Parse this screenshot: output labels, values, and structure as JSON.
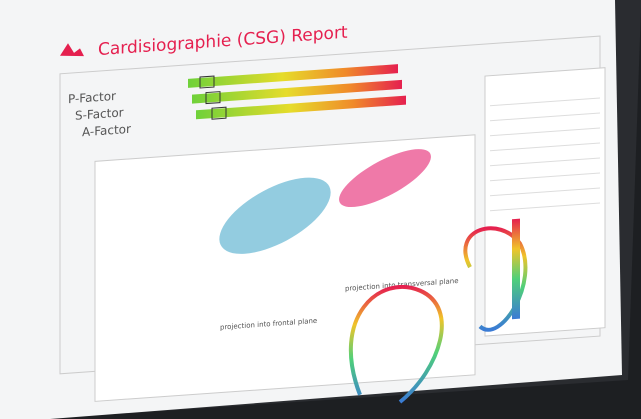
{
  "header": {
    "title": "Cardisiographie (CSG) Report"
  },
  "factors": [
    "P-Factor",
    "S-Factor",
    "A-Factor"
  ],
  "plots": {
    "frontal": "projection into frontal plane",
    "transversal": "projection into transversal plane"
  }
}
